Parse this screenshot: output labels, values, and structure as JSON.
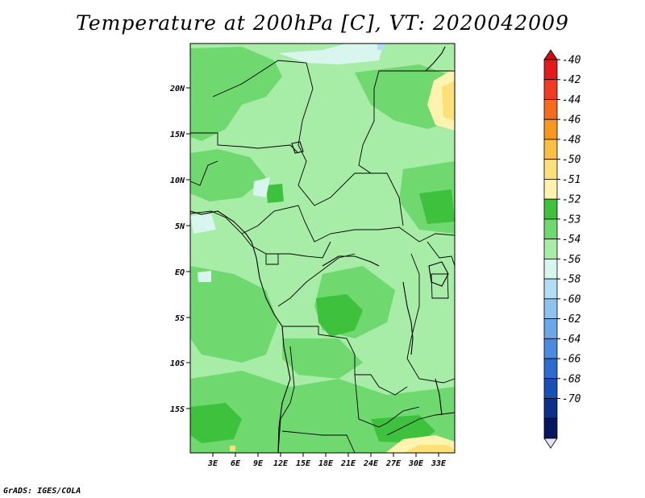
{
  "title": "Temperature at 200hPa [C], VT: 2020042009",
  "credit": "GrADS: IGES/COLA",
  "map": {
    "lat_labels": [
      "20N",
      "15N",
      "10N",
      "5N",
      "EQ",
      "5S",
      "10S",
      "15S"
    ],
    "lon_labels": [
      "3E",
      "6E",
      "9E",
      "12E",
      "15E",
      "18E",
      "21E",
      "24E",
      "27E",
      "30E",
      "33E"
    ]
  },
  "colorbar": {
    "labels": [
      "-40",
      "-42",
      "-44",
      "-46",
      "-48",
      "-50",
      "-51",
      "-52",
      "-53",
      "-54",
      "-56",
      "-58",
      "-60",
      "-62",
      "-64",
      "-66",
      "-68",
      "-70"
    ],
    "colors": [
      "#e31a1c",
      "#f03b20",
      "#f46d1e",
      "#f99820",
      "#fbbf45",
      "#fde07a",
      "#fff3b0",
      "#3ec23e",
      "#6fd86f",
      "#a7eca7",
      "#d8f6ee",
      "#b3dcf5",
      "#8ec3ef",
      "#6aa8e8",
      "#4a8bde",
      "#2e6bd0",
      "#1a4fb8",
      "#0c2f8c",
      "#07155e"
    ],
    "top_color": "#cc1010",
    "bottom_color": "#e6e2f6"
  },
  "colors": {
    "dominant_field": "#a7eca7",
    "warm_patch": "#fde07a"
  }
}
